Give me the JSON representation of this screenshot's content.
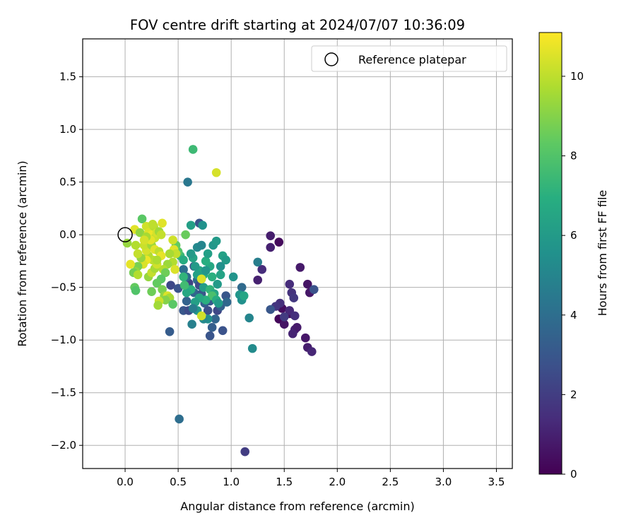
{
  "chart_data": {
    "type": "scatter",
    "title": "FOV centre drift starting at 2024/07/07 10:36:09",
    "xlabel": "Angular distance from reference (arcmin)",
    "ylabel": "Rotation from reference (arcmin)",
    "xlim": [
      -0.4,
      3.65
    ],
    "ylim": [
      -2.22,
      1.86
    ],
    "x_ticks": [
      0.0,
      0.5,
      1.0,
      1.5,
      2.0,
      2.5,
      3.0,
      3.5
    ],
    "x_tick_labels": [
      "0.0",
      "0.5",
      "1.0",
      "1.5",
      "2.0",
      "2.5",
      "3.0",
      "3.5"
    ],
    "y_ticks": [
      1.5,
      1.0,
      0.5,
      0.0,
      -0.5,
      -1.0,
      -1.5,
      -2.0
    ],
    "y_tick_labels": [
      "1.5",
      "1.0",
      "0.5",
      "0.0",
      "−0.5",
      "−1.0",
      "−1.5",
      "−2.0"
    ],
    "grid": true,
    "legend": {
      "position": "top-right",
      "entries": [
        "Reference platepar"
      ]
    },
    "reference_point": {
      "x": 0.0,
      "y": 0.0
    },
    "colorbar": {
      "label": "Hours from first FF file",
      "colormap": "viridis",
      "range": [
        0,
        11.1
      ],
      "ticks": [
        0,
        2,
        4,
        6,
        8,
        10
      ],
      "tick_labels": [
        "0",
        "2",
        "4",
        "6",
        "8",
        "10"
      ]
    },
    "points": [
      [
        1.45,
        -0.8,
        0.2
      ],
      [
        1.5,
        -0.85,
        0.6
      ],
      [
        1.48,
        -0.7,
        0.4
      ],
      [
        1.55,
        -0.75,
        0.5
      ],
      [
        1.6,
        -0.9,
        1.0
      ],
      [
        1.62,
        -0.88,
        0.8
      ],
      [
        1.7,
        -0.98,
        0.7
      ],
      [
        1.72,
        -1.07,
        0.9
      ],
      [
        1.76,
        -1.11,
        1.2
      ],
      [
        1.65,
        -0.31,
        0.8
      ],
      [
        1.72,
        -0.47,
        0.6
      ],
      [
        1.74,
        -0.55,
        0.7
      ],
      [
        1.55,
        -0.47,
        1.4
      ],
      [
        1.57,
        -0.55,
        1.6
      ],
      [
        1.59,
        -0.6,
        1.8
      ],
      [
        1.45,
        -0.07,
        0.3
      ],
      [
        1.37,
        -0.01,
        0.9
      ],
      [
        1.37,
        -0.12,
        1.0
      ],
      [
        1.46,
        -0.65,
        1.5
      ],
      [
        1.55,
        -0.72,
        1.3
      ],
      [
        1.58,
        -0.94,
        1.1
      ],
      [
        1.6,
        -0.77,
        1.5
      ],
      [
        1.42,
        -0.68,
        1.7
      ],
      [
        1.5,
        -0.78,
        1.9
      ],
      [
        1.29,
        -0.33,
        1.4
      ],
      [
        1.25,
        -0.43,
        1.0
      ],
      [
        1.78,
        -0.52,
        2.8
      ],
      [
        1.37,
        -0.71,
        3.0
      ],
      [
        1.25,
        -0.26,
        4.7
      ],
      [
        1.17,
        -0.79,
        5.0
      ],
      [
        1.2,
        -1.08,
        5.3
      ],
      [
        1.13,
        -2.06,
        2.0
      ],
      [
        0.51,
        -1.75,
        4.0
      ],
      [
        0.42,
        -0.92,
        3.2
      ],
      [
        0.43,
        -0.48,
        2.4
      ],
      [
        0.5,
        -0.51,
        2.8
      ],
      [
        0.55,
        -0.72,
        3.0
      ],
      [
        0.58,
        -0.63,
        3.5
      ],
      [
        0.6,
        -0.72,
        2.5
      ],
      [
        0.63,
        -0.85,
        4.8
      ],
      [
        0.65,
        -0.55,
        3.6
      ],
      [
        0.68,
        -0.43,
        3.8
      ],
      [
        0.7,
        -0.48,
        2.6
      ],
      [
        0.72,
        -0.56,
        3.0
      ],
      [
        0.75,
        -0.65,
        3.4
      ],
      [
        0.78,
        -0.72,
        2.7
      ],
      [
        0.8,
        -0.63,
        3.1
      ],
      [
        0.82,
        -0.88,
        3.3
      ],
      [
        0.8,
        -0.96,
        2.9
      ],
      [
        0.85,
        -0.8,
        3.6
      ],
      [
        0.87,
        -0.72,
        2.4
      ],
      [
        0.92,
        -0.91,
        2.8
      ],
      [
        0.9,
        -0.68,
        3.4
      ],
      [
        0.95,
        -0.58,
        3.0
      ],
      [
        0.96,
        -0.64,
        3.7
      ],
      [
        1.1,
        -0.5,
        3.8
      ],
      [
        1.08,
        -0.57,
        5.8
      ],
      [
        1.1,
        -0.62,
        5.5
      ],
      [
        1.12,
        -0.58,
        6.5
      ],
      [
        0.6,
        -0.46,
        2.2
      ],
      [
        0.58,
        -0.4,
        3.8
      ],
      [
        0.55,
        -0.33,
        4.0
      ],
      [
        0.65,
        -0.3,
        2.6
      ],
      [
        0.68,
        -0.12,
        5.2
      ],
      [
        0.72,
        -0.1,
        5.0
      ],
      [
        0.7,
        0.11,
        2.8
      ],
      [
        0.73,
        0.09,
        5.6
      ],
      [
        0.62,
        0.09,
        6.2
      ],
      [
        0.59,
        0.5,
        4.4
      ],
      [
        0.64,
        0.81,
        7.5
      ],
      [
        0.86,
        0.59,
        10.4
      ],
      [
        0.83,
        -0.1,
        5.8
      ],
      [
        0.86,
        -0.06,
        6.0
      ],
      [
        0.9,
        -0.3,
        5.5
      ],
      [
        0.92,
        -0.2,
        6.3
      ],
      [
        0.95,
        -0.24,
        6.0
      ],
      [
        1.02,
        -0.4,
        5.7
      ],
      [
        0.8,
        -0.3,
        6.6
      ],
      [
        0.76,
        -0.25,
        6.9
      ],
      [
        0.78,
        -0.18,
        6.2
      ],
      [
        0.82,
        -0.4,
        7.0
      ],
      [
        0.74,
        -0.38,
        6.8
      ],
      [
        0.7,
        -0.34,
        6.5
      ],
      [
        0.68,
        -0.38,
        6.2
      ],
      [
        0.66,
        -0.3,
        6.0
      ],
      [
        0.64,
        -0.22,
        6.4
      ],
      [
        0.62,
        -0.18,
        6.0
      ],
      [
        0.76,
        -0.34,
        5.8
      ],
      [
        0.72,
        -0.42,
        6.8
      ],
      [
        0.74,
        -0.5,
        6.1
      ],
      [
        0.8,
        -0.52,
        7.2
      ],
      [
        0.84,
        -0.56,
        6.5
      ],
      [
        0.82,
        -0.58,
        7.8
      ],
      [
        0.86,
        -0.62,
        6.8
      ],
      [
        0.76,
        -0.62,
        7.0
      ],
      [
        0.7,
        -0.6,
        6.6
      ],
      [
        0.66,
        -0.64,
        6.2
      ],
      [
        0.68,
        -0.72,
        5.8
      ],
      [
        0.64,
        -0.7,
        4.6
      ],
      [
        0.88,
        -0.65,
        6.0
      ],
      [
        0.87,
        -0.47,
        6.0
      ],
      [
        0.9,
        -0.38,
        6.4
      ],
      [
        0.78,
        -0.8,
        5.5
      ],
      [
        0.74,
        -0.8,
        5.2
      ],
      [
        0.72,
        -0.77,
        10.3
      ],
      [
        0.72,
        -0.42,
        10.5
      ],
      [
        0.62,
        -0.52,
        7.0
      ],
      [
        0.58,
        -0.55,
        6.6
      ],
      [
        0.56,
        -0.48,
        7.6
      ],
      [
        0.55,
        -0.4,
        7.2
      ],
      [
        0.52,
        -0.2,
        7.4
      ],
      [
        0.55,
        -0.24,
        6.8
      ],
      [
        0.57,
        0.0,
        8.5
      ],
      [
        0.5,
        -0.16,
        8.0
      ],
      [
        0.48,
        -0.1,
        8.4
      ],
      [
        0.45,
        -0.05,
        10.3
      ],
      [
        0.46,
        -0.14,
        10.6
      ],
      [
        0.48,
        -0.18,
        10.1
      ],
      [
        0.42,
        -0.18,
        9.6
      ],
      [
        0.45,
        -0.26,
        9.8
      ],
      [
        0.47,
        -0.33,
        10.5
      ],
      [
        0.4,
        -0.28,
        9.4
      ],
      [
        0.36,
        -0.33,
        9.8
      ],
      [
        0.38,
        -0.36,
        8.6
      ],
      [
        0.34,
        -0.42,
        8.2
      ],
      [
        0.3,
        -0.46,
        8.4
      ],
      [
        0.35,
        -0.52,
        8.8
      ],
      [
        0.37,
        -0.58,
        9.2
      ],
      [
        0.4,
        -0.58,
        10.5
      ],
      [
        0.42,
        -0.6,
        9.6
      ],
      [
        0.38,
        -0.62,
        9.0
      ],
      [
        0.32,
        -0.63,
        10.2
      ],
      [
        0.31,
        -0.67,
        9.5
      ],
      [
        0.45,
        -0.66,
        8.2
      ],
      [
        0.25,
        -0.54,
        8.6
      ],
      [
        0.22,
        -0.4,
        9.3
      ],
      [
        0.25,
        -0.36,
        10.1
      ],
      [
        0.28,
        -0.32,
        9.6
      ],
      [
        0.3,
        -0.28,
        10.3
      ],
      [
        0.26,
        -0.24,
        10.0
      ],
      [
        0.22,
        -0.2,
        9.8
      ],
      [
        0.2,
        -0.15,
        10.4
      ],
      [
        0.18,
        -0.1,
        10.2
      ],
      [
        0.25,
        -0.1,
        9.5
      ],
      [
        0.28,
        -0.14,
        10.6
      ],
      [
        0.32,
        -0.16,
        10.0
      ],
      [
        0.34,
        -0.2,
        10.7
      ],
      [
        0.3,
        -0.24,
        9.7
      ],
      [
        0.2,
        -0.24,
        10.8
      ],
      [
        0.17,
        -0.28,
        10.5
      ],
      [
        0.15,
        -0.22,
        9.3
      ],
      [
        0.12,
        -0.18,
        10.1
      ],
      [
        0.1,
        -0.1,
        9.8
      ],
      [
        0.12,
        -0.3,
        8.8
      ],
      [
        0.1,
        -0.35,
        9.2
      ],
      [
        0.08,
        -0.36,
        8.7
      ],
      [
        0.12,
        -0.38,
        9.8
      ],
      [
        0.02,
        -0.08,
        9.3
      ],
      [
        0.05,
        -0.28,
        10.7
      ],
      [
        0.09,
        -0.5,
        8.4
      ],
      [
        0.1,
        -0.53,
        8.0
      ],
      [
        0.09,
        0.05,
        10.6
      ],
      [
        0.14,
        0.02,
        9.2
      ],
      [
        0.16,
        0.15,
        8.2
      ],
      [
        0.2,
        0.08,
        10.3
      ],
      [
        0.22,
        0.02,
        10.5
      ],
      [
        0.25,
        0.0,
        10.8
      ],
      [
        0.27,
        0.08,
        9.9
      ],
      [
        0.28,
        -0.03,
        10.2
      ],
      [
        0.3,
        0.02,
        10.4
      ],
      [
        0.32,
        0.03,
        9.5
      ],
      [
        0.34,
        0.0,
        10.1
      ],
      [
        0.35,
        0.11,
        10.6
      ],
      [
        0.26,
        0.1,
        10.0
      ],
      [
        0.24,
        -0.05,
        10.7
      ],
      [
        0.2,
        -0.02,
        9.6
      ],
      [
        0.18,
        -0.05,
        10.4
      ]
    ]
  }
}
